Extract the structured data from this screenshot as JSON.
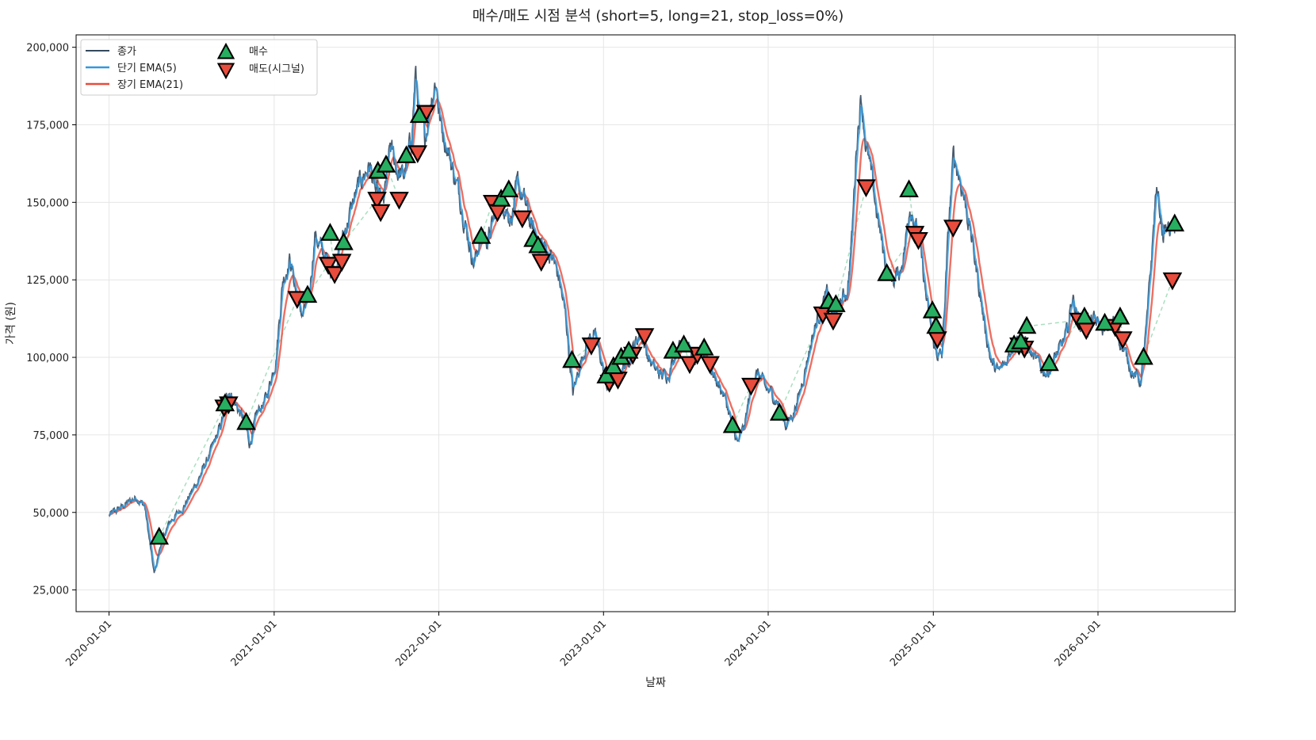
{
  "chart_data": {
    "type": "line",
    "title": "매수/매도 시점 분석 (short=5, long=21, stop_loss=0%)",
    "xlabel": "날짜",
    "ylabel": "가격 (원)",
    "xlim": [
      "2019-10-20",
      "2026-11-01"
    ],
    "ylim": [
      18000,
      204000
    ],
    "grid": true,
    "legend_position": "top-left",
    "x_ticks": [
      "2020-01-01",
      "2021-01-01",
      "2022-01-01",
      "2023-01-01",
      "2024-01-01",
      "2025-01-01",
      "2026-01-01"
    ],
    "y_ticks": [
      25000,
      50000,
      75000,
      100000,
      125000,
      150000,
      175000,
      200000
    ],
    "y_tick_labels": [
      "25,000",
      "50,000",
      "75,000",
      "100,000",
      "125,000",
      "150,000",
      "175,000",
      "200,000"
    ],
    "colors": {
      "close": "#34495e",
      "ema_short": "#3498db",
      "ema_long": "#e74c3c",
      "buy": "#27ae60",
      "sell": "#e74c3c",
      "trade_link": "#a9dfbf"
    },
    "series": [
      {
        "name": "종가",
        "key": "close"
      },
      {
        "name": "단기 EMA(5)",
        "key": "ema_short"
      },
      {
        "name": "장기 EMA(21)",
        "key": "ema_long"
      }
    ],
    "markers": [
      {
        "name": "매수",
        "key": "buy"
      },
      {
        "name": "매도(시그널)",
        "key": "sell"
      }
    ],
    "close_anchors": [
      [
        "2020-01-01",
        49000
      ],
      [
        "2020-02-01",
        52000
      ],
      [
        "2020-03-01",
        55000
      ],
      [
        "2020-03-20",
        52000
      ],
      [
        "2020-04-10",
        30000
      ],
      [
        "2020-04-25",
        40000
      ],
      [
        "2020-05-15",
        47000
      ],
      [
        "2020-06-15",
        52000
      ],
      [
        "2020-07-15",
        60000
      ],
      [
        "2020-08-15",
        70000
      ],
      [
        "2020-09-05",
        78000
      ],
      [
        "2020-09-22",
        90000
      ],
      [
        "2020-10-10",
        84000
      ],
      [
        "2020-10-25",
        80000
      ],
      [
        "2020-11-08",
        72000
      ],
      [
        "2020-11-25",
        82000
      ],
      [
        "2020-12-15",
        87000
      ],
      [
        "2021-01-05",
        100000
      ],
      [
        "2021-01-20",
        125000
      ],
      [
        "2021-02-05",
        132000
      ],
      [
        "2021-02-20",
        120000
      ],
      [
        "2021-03-05",
        113000
      ],
      [
        "2021-03-20",
        120000
      ],
      [
        "2021-04-01",
        140000
      ],
      [
        "2021-04-20",
        133000
      ],
      [
        "2021-05-10",
        128000
      ],
      [
        "2021-06-01",
        138000
      ],
      [
        "2021-06-25",
        150000
      ],
      [
        "2021-07-15",
        158000
      ],
      [
        "2021-08-01",
        162000
      ],
      [
        "2021-08-15",
        152000
      ],
      [
        "2021-09-01",
        150000
      ],
      [
        "2021-09-15",
        168000
      ],
      [
        "2021-10-01",
        160000
      ],
      [
        "2021-10-15",
        158000
      ],
      [
        "2021-11-01",
        170000
      ],
      [
        "2021-11-10",
        192000
      ],
      [
        "2021-11-20",
        175000
      ],
      [
        "2021-12-01",
        170000
      ],
      [
        "2021-12-12",
        182000
      ],
      [
        "2021-12-25",
        190000
      ],
      [
        "2022-01-05",
        175000
      ],
      [
        "2022-01-20",
        168000
      ],
      [
        "2022-02-05",
        158000
      ],
      [
        "2022-02-20",
        150000
      ],
      [
        "2022-03-05",
        140000
      ],
      [
        "2022-03-20",
        130000
      ],
      [
        "2022-04-05",
        140000
      ],
      [
        "2022-04-20",
        138000
      ],
      [
        "2022-05-10",
        148000
      ],
      [
        "2022-05-25",
        150000
      ],
      [
        "2022-06-10",
        145000
      ],
      [
        "2022-06-25",
        155000
      ],
      [
        "2022-07-10",
        150000
      ],
      [
        "2022-07-25",
        142000
      ],
      [
        "2022-08-10",
        138000
      ],
      [
        "2022-08-25",
        135000
      ],
      [
        "2022-09-10",
        132000
      ],
      [
        "2022-09-25",
        125000
      ],
      [
        "2022-10-10",
        112000
      ],
      [
        "2022-10-25",
        88000
      ],
      [
        "2022-11-10",
        98000
      ],
      [
        "2022-11-25",
        105000
      ],
      [
        "2022-12-10",
        108000
      ],
      [
        "2022-12-25",
        100000
      ],
      [
        "2023-01-10",
        90000
      ],
      [
        "2023-01-25",
        93000
      ],
      [
        "2023-02-10",
        96000
      ],
      [
        "2023-02-25",
        100000
      ],
      [
        "2023-03-10",
        104000
      ],
      [
        "2023-03-25",
        108000
      ],
      [
        "2023-04-10",
        100000
      ],
      [
        "2023-04-25",
        96000
      ],
      [
        "2023-05-10",
        94000
      ],
      [
        "2023-05-25",
        95000
      ],
      [
        "2023-06-10",
        102000
      ],
      [
        "2023-06-25",
        106000
      ],
      [
        "2023-07-10",
        103000
      ],
      [
        "2023-07-25",
        98000
      ],
      [
        "2023-08-10",
        102000
      ],
      [
        "2023-08-25",
        97000
      ],
      [
        "2023-09-10",
        92000
      ],
      [
        "2023-09-25",
        88000
      ],
      [
        "2023-10-10",
        80000
      ],
      [
        "2023-10-25",
        72000
      ],
      [
        "2023-11-10",
        78000
      ],
      [
        "2023-11-25",
        92000
      ],
      [
        "2023-12-10",
        95000
      ],
      [
        "2023-12-25",
        90000
      ],
      [
        "2024-01-10",
        88000
      ],
      [
        "2024-01-25",
        85000
      ],
      [
        "2024-02-10",
        78000
      ],
      [
        "2024-02-25",
        82000
      ],
      [
        "2024-03-10",
        88000
      ],
      [
        "2024-03-25",
        98000
      ],
      [
        "2024-04-10",
        108000
      ],
      [
        "2024-04-25",
        115000
      ],
      [
        "2024-05-10",
        120000
      ],
      [
        "2024-05-25",
        112000
      ],
      [
        "2024-06-10",
        118000
      ],
      [
        "2024-06-25",
        122000
      ],
      [
        "2024-07-05",
        140000
      ],
      [
        "2024-07-15",
        170000
      ],
      [
        "2024-07-25",
        185000
      ],
      [
        "2024-08-05",
        168000
      ],
      [
        "2024-08-20",
        155000
      ],
      [
        "2024-09-05",
        140000
      ],
      [
        "2024-09-20",
        128000
      ],
      [
        "2024-10-05",
        125000
      ],
      [
        "2024-10-20",
        128000
      ],
      [
        "2024-11-01",
        138000
      ],
      [
        "2024-11-10",
        150000
      ],
      [
        "2024-11-20",
        145000
      ],
      [
        "2024-12-05",
        132000
      ],
      [
        "2024-12-20",
        115000
      ],
      [
        "2025-01-05",
        102000
      ],
      [
        "2025-01-20",
        100000
      ],
      [
        "2025-02-05",
        145000
      ],
      [
        "2025-02-15",
        165000
      ],
      [
        "2025-02-25",
        160000
      ],
      [
        "2025-03-10",
        152000
      ],
      [
        "2025-03-25",
        140000
      ],
      [
        "2025-04-10",
        125000
      ],
      [
        "2025-04-25",
        110000
      ],
      [
        "2025-05-10",
        98000
      ],
      [
        "2025-05-25",
        95000
      ],
      [
        "2025-06-10",
        98000
      ],
      [
        "2025-06-25",
        104000
      ],
      [
        "2025-07-10",
        108000
      ],
      [
        "2025-07-25",
        104000
      ],
      [
        "2025-08-10",
        100000
      ],
      [
        "2025-08-25",
        97000
      ],
      [
        "2025-09-10",
        95000
      ],
      [
        "2025-09-25",
        99000
      ],
      [
        "2025-10-10",
        103000
      ],
      [
        "2025-10-25",
        108000
      ],
      [
        "2025-11-05",
        120000
      ],
      [
        "2025-11-20",
        112000
      ],
      [
        "2025-12-05",
        108000
      ],
      [
        "2025-12-20",
        112000
      ],
      [
        "2026-01-05",
        110000
      ],
      [
        "2026-01-20",
        108000
      ],
      [
        "2026-02-05",
        112000
      ],
      [
        "2026-02-20",
        105000
      ],
      [
        "2026-03-05",
        100000
      ],
      [
        "2026-03-20",
        95000
      ],
      [
        "2026-04-05",
        92000
      ],
      [
        "2026-04-20",
        112000
      ],
      [
        "2026-05-01",
        135000
      ],
      [
        "2026-05-10",
        155000
      ],
      [
        "2026-05-25",
        140000
      ],
      [
        "2026-06-10",
        142000
      ],
      [
        "2026-06-20",
        140000
      ]
    ],
    "buy_signals": [
      [
        "2020-04-21",
        42000
      ],
      [
        "2020-09-14",
        85000
      ],
      [
        "2020-10-31",
        79000
      ],
      [
        "2021-03-16",
        120000
      ],
      [
        "2021-05-05",
        140000
      ],
      [
        "2021-06-04",
        137000
      ],
      [
        "2021-08-19",
        160000
      ],
      [
        "2021-09-06",
        162000
      ],
      [
        "2021-10-21",
        165000
      ],
      [
        "2021-11-19",
        178000
      ],
      [
        "2022-04-05",
        139000
      ],
      [
        "2022-05-19",
        151000
      ],
      [
        "2022-06-05",
        154000
      ],
      [
        "2022-07-29",
        138000
      ],
      [
        "2022-08-09",
        136000
      ],
      [
        "2022-10-23",
        99000
      ],
      [
        "2023-01-07",
        94000
      ],
      [
        "2023-01-23",
        97000
      ],
      [
        "2023-02-09",
        100000
      ],
      [
        "2023-02-26",
        102000
      ],
      [
        "2023-06-04",
        102000
      ],
      [
        "2023-06-28",
        104000
      ],
      [
        "2023-08-12",
        103000
      ],
      [
        "2023-10-14",
        78000
      ],
      [
        "2024-01-26",
        82000
      ],
      [
        "2024-05-14",
        118000
      ],
      [
        "2024-05-30",
        117000
      ],
      [
        "2024-09-20",
        127000
      ],
      [
        "2024-11-08",
        154000
      ],
      [
        "2024-12-30",
        115000
      ],
      [
        "2025-01-07",
        110000
      ],
      [
        "2025-06-29",
        104000
      ],
      [
        "2025-07-14",
        105000
      ],
      [
        "2025-07-27",
        110000
      ],
      [
        "2025-09-15",
        98000
      ],
      [
        "2025-12-02",
        113000
      ],
      [
        "2026-01-16",
        111000
      ],
      [
        "2026-02-19",
        113000
      ],
      [
        "2026-04-12",
        100000
      ],
      [
        "2026-06-20",
        143000
      ]
    ],
    "sell_signals": [
      [
        "2020-09-12",
        84000
      ],
      [
        "2020-09-22",
        85000
      ],
      [
        "2021-02-21",
        119000
      ],
      [
        "2021-05-01",
        130000
      ],
      [
        "2021-05-15",
        127000
      ],
      [
        "2021-05-31",
        131000
      ],
      [
        "2021-08-17",
        151000
      ],
      [
        "2021-08-25",
        147000
      ],
      [
        "2021-10-05",
        151000
      ],
      [
        "2021-11-15",
        166000
      ],
      [
        "2021-12-03",
        179000
      ],
      [
        "2022-04-30",
        150000
      ],
      [
        "2022-05-11",
        147000
      ],
      [
        "2022-07-05",
        145000
      ],
      [
        "2022-08-16",
        131000
      ],
      [
        "2022-12-05",
        104000
      ],
      [
        "2023-01-14",
        92000
      ],
      [
        "2023-02-02",
        93000
      ],
      [
        "2023-03-07",
        101000
      ],
      [
        "2023-04-02",
        107000
      ],
      [
        "2023-07-11",
        98000
      ],
      [
        "2023-07-28",
        101000
      ],
      [
        "2023-08-25",
        98000
      ],
      [
        "2023-11-24",
        91000
      ],
      [
        "2024-05-01",
        114000
      ],
      [
        "2024-05-24",
        112000
      ],
      [
        "2024-08-05",
        155000
      ],
      [
        "2024-11-21",
        140000
      ],
      [
        "2024-11-29",
        138000
      ],
      [
        "2025-01-10",
        106000
      ],
      [
        "2025-02-14",
        142000
      ],
      [
        "2025-07-10",
        104000
      ],
      [
        "2025-07-22",
        103000
      ],
      [
        "2025-11-20",
        112000
      ],
      [
        "2025-12-06",
        109000
      ],
      [
        "2026-02-08",
        110000
      ],
      [
        "2026-02-25",
        106000
      ],
      [
        "2026-06-15",
        125000
      ]
    ]
  }
}
